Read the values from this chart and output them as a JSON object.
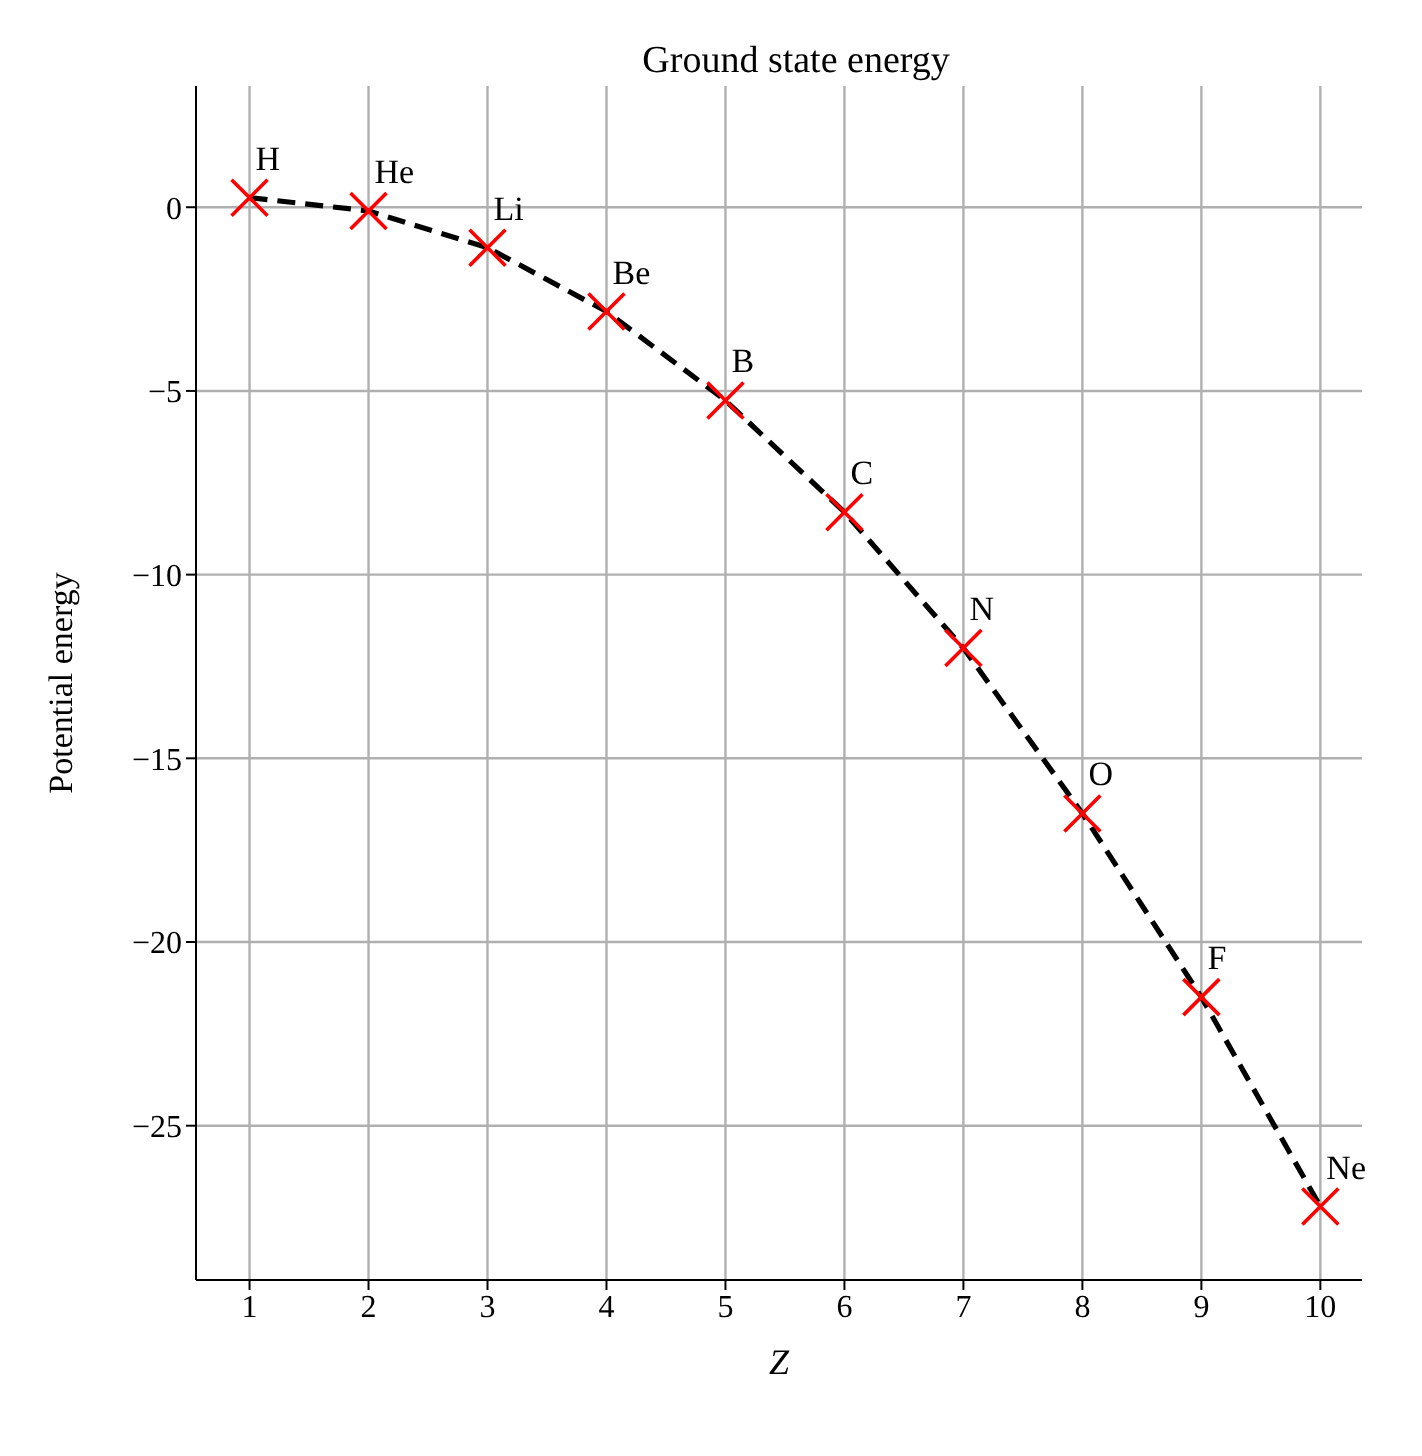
{
  "chart_data": {
    "type": "line",
    "title": "Ground state energy",
    "xlabel": "Z",
    "ylabel": "Potential energy",
    "x": [
      1,
      2,
      3,
      4,
      5,
      6,
      7,
      8,
      9,
      10
    ],
    "series": [
      {
        "color": "#000000",
        "line_style": "dashed",
        "marker": "none",
        "values": [
          0.26,
          -0.1,
          -1.1,
          -2.84,
          -5.26,
          -8.3,
          -12.0,
          -16.5,
          -21.5,
          -27.2
        ]
      },
      {
        "type": "scatter",
        "color": "#ff0000",
        "marker": "cross",
        "values": [
          0.26,
          -0.1,
          -1.1,
          -2.84,
          -5.26,
          -8.3,
          -12.0,
          -16.5,
          -21.5,
          -27.2
        ]
      }
    ],
    "xlim": [
      0.55,
      10.35
    ],
    "xticks": [
      1,
      2,
      3,
      4,
      5,
      6,
      7,
      8,
      9,
      10
    ],
    "ylim": [
      -29.2,
      3.3
    ],
    "yticks": [
      {
        "value": -25,
        "label": "−25"
      },
      {
        "value": -20,
        "label": "−20"
      },
      {
        "value": -15,
        "label": "−15"
      },
      {
        "value": -10,
        "label": "−10"
      },
      {
        "value": -5,
        "label": "−5"
      },
      0
    ],
    "grid": true,
    "annotations": [
      {
        "text": "H",
        "x": 1,
        "y": 0.26
      },
      {
        "text": "He",
        "x": 2,
        "y": -0.1
      },
      {
        "text": "Li",
        "x": 3,
        "y": -1.1
      },
      {
        "text": "Be",
        "x": 4,
        "y": -2.84
      },
      {
        "text": "B",
        "x": 5,
        "y": -5.26
      },
      {
        "text": "C",
        "x": 6,
        "y": -8.3
      },
      {
        "text": "N",
        "x": 7,
        "y": -12.0
      },
      {
        "text": "O",
        "x": 8,
        "y": -16.5
      },
      {
        "text": "F",
        "x": 9,
        "y": -21.5
      },
      {
        "text": "Ne",
        "x": 10,
        "y": -27.2
      }
    ]
  }
}
